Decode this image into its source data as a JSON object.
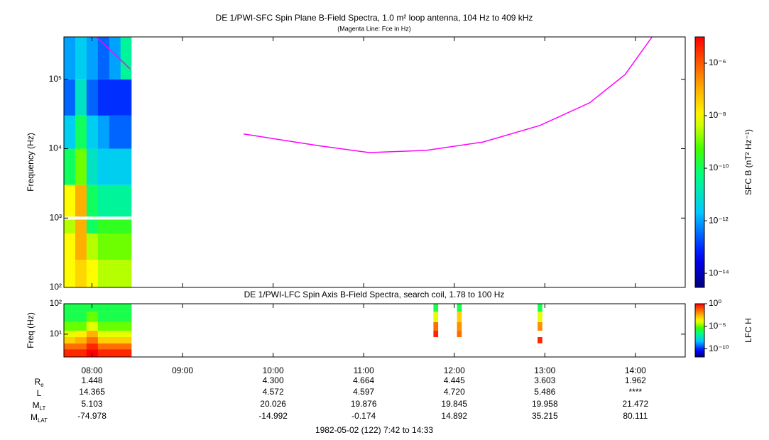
{
  "chart_data": [
    {
      "type": "spectrogram",
      "title": "DE 1/PWI-SFC  Spin Plane B-Field Spectra, 1.0 m² loop antenna, 104 Hz to 409 kHz",
      "subtitle": "(Magenta Line: Fce in Hz)",
      "y_label": "Frequency (Hz)",
      "colorbar_label": "SFC B (nT² Hz⁻¹)",
      "xlim": [
        7.69,
        14.55
      ],
      "xticks": [
        8,
        9,
        10,
        11,
        12,
        13,
        14
      ],
      "ylim": [
        100,
        409000
      ],
      "ylog": true,
      "yticks": [
        {
          "value": 100,
          "label": "10²"
        },
        {
          "value": 1000,
          "label": "10³"
        },
        {
          "value": 10000,
          "label": "10⁴"
        },
        {
          "value": 100000,
          "label": "10⁵"
        }
      ],
      "clim": [
        2.9e-15,
        1e-05
      ],
      "clog": true,
      "cticks": [
        {
          "value": 1e-14,
          "label": "10⁻¹⁴"
        },
        {
          "value": 1e-12,
          "label": "10⁻¹²"
        },
        {
          "value": 1e-10,
          "label": "10⁻¹⁰"
        },
        {
          "value": 1e-08,
          "label": "10⁻⁸"
        },
        {
          "value": 1e-06,
          "label": "10⁻⁶"
        }
      ],
      "time_edges": [
        7.69,
        7.815,
        7.94,
        8.065,
        8.19,
        8.315,
        8.435
      ],
      "freq_edges": [
        100,
        250,
        600,
        950,
        1050,
        3000,
        10000,
        30000,
        100000,
        409000
      ],
      "z": [
        [
          1e-08,
          3e-08,
          1e-08,
          3e-09,
          3e-09,
          3e-09
        ],
        [
          1e-08,
          1e-07,
          3e-09,
          1e-09,
          1e-09,
          1e-09
        ],
        [
          3e-09,
          1e-07,
          1e-10,
          3e-10,
          3e-10,
          3e-10
        ],
        [
          null,
          null,
          null,
          null,
          null,
          null
        ],
        [
          1e-08,
          1e-07,
          1e-10,
          3e-11,
          3e-11,
          3e-11
        ],
        [
          1e-10,
          1e-09,
          1e-11,
          3e-12,
          3e-12,
          3e-12
        ],
        [
          3e-12,
          1e-10,
          3e-12,
          1e-12,
          3e-13,
          3e-13
        ],
        [
          3e-13,
          1e-11,
          3e-13,
          1e-13,
          1e-13,
          1e-13
        ],
        [
          1e-12,
          3e-12,
          1e-12,
          3e-13,
          1e-12,
          3e-11
        ]
      ],
      "line": {
        "color": "#ff00ff",
        "x": [
          8.043,
          8.239,
          8.419,
          null,
          9.674,
          10.121,
          10.514,
          11.063,
          11.69,
          12.318,
          12.945,
          13.494,
          13.886,
          14.184
        ],
        "values": [
          409000,
          239000,
          142000,
          null,
          16300,
          13200,
          11000,
          8800,
          9450,
          12500,
          21600,
          45800,
          117000,
          409000
        ]
      }
    },
    {
      "type": "spectrogram",
      "title": "DE 1/PWI-LFC  Spin Axis B-Field Spectra, search coil, 1.78 to 100 Hz",
      "y_label": "Freq (Hz)",
      "colorbar_label": "LFC H",
      "xlim": [
        7.69,
        14.55
      ],
      "xticks": [
        {
          "value": 8,
          "label": "08:00"
        },
        {
          "value": 9,
          "label": "09:00"
        },
        {
          "value": 10,
          "label": "10:00"
        },
        {
          "value": 11,
          "label": "11:00"
        },
        {
          "value": 12,
          "label": "12:00"
        },
        {
          "value": 13,
          "label": "13:00"
        },
        {
          "value": 14,
          "label": "14:00"
        }
      ],
      "ylim": [
        1.78,
        100
      ],
      "ylog": true,
      "yticks": [
        {
          "value": 10,
          "label": "10¹"
        },
        {
          "value": 100,
          "label": "10²"
        }
      ],
      "clim": [
        1.6e-12,
        1
      ],
      "clog": true,
      "cticks": [
        {
          "value": 1e-10,
          "label": "10⁻¹⁰"
        },
        {
          "value": 1e-05,
          "label": "10⁻⁵"
        },
        {
          "value": 1,
          "label": "10⁰"
        }
      ],
      "time_edges": [
        7.69,
        7.815,
        7.94,
        8.065,
        8.19,
        8.315,
        8.435,
        11.77,
        11.82,
        12.03,
        12.08,
        12.92,
        12.97
      ],
      "freq_edges": [
        1.78,
        3.2,
        5,
        8,
        13,
        25,
        55,
        100
      ],
      "z": [
        [
          0.3,
          0.3,
          1,
          0.3,
          0.3,
          0.3,
          null,
          null,
          null,
          null,
          null,
          null
        ],
        [
          0.03,
          0.03,
          0.3,
          0.03,
          0.03,
          0.03,
          null,
          null,
          null,
          null,
          null,
          null
        ],
        [
          0.001,
          0.003,
          0.03,
          0.001,
          0.001,
          0.001,
          null,
          null,
          null,
          null,
          null,
          0.3
        ],
        [
          0.0001,
          0.0003,
          0.003,
          0.0001,
          0.0001,
          0.0001,
          null,
          0.3,
          null,
          0.03,
          null,
          null
        ],
        [
          1e-05,
          1e-05,
          0.0001,
          1e-05,
          1e-05,
          1e-05,
          null,
          0.03,
          null,
          0.01,
          null,
          0.01
        ],
        [
          1e-06,
          1e-06,
          1e-05,
          1e-06,
          1e-06,
          1e-06,
          null,
          0.0001,
          null,
          0.001,
          null,
          0.0001
        ],
        [
          1e-06,
          1e-06,
          1e-06,
          1e-06,
          1e-06,
          1e-06,
          null,
          1e-06,
          null,
          1e-06,
          null,
          1e-06
        ]
      ]
    }
  ],
  "ephemeris": {
    "row_labels": [
      {
        "text": "R",
        "sub": "e"
      },
      {
        "text": "L"
      },
      {
        "text": "M",
        "sub": "LT"
      },
      {
        "text": "M",
        "sub": "LAT"
      }
    ],
    "columns": [
      [
        "1.448",
        "14.365",
        "5.103",
        "-74.978"
      ],
      null,
      [
        "4.300",
        "4.572",
        "20.026",
        "-14.992"
      ],
      [
        "4.664",
        "4.597",
        "19.876",
        "-0.174"
      ],
      [
        "4.445",
        "4.720",
        "19.845",
        "14.892"
      ],
      [
        "3.603",
        "5.486",
        "19.958",
        "35.215"
      ],
      [
        "1.962",
        "****",
        "21.472",
        "80.111"
      ]
    ]
  },
  "footer": "1982-05-02 (122) 7:42 to 14:33"
}
